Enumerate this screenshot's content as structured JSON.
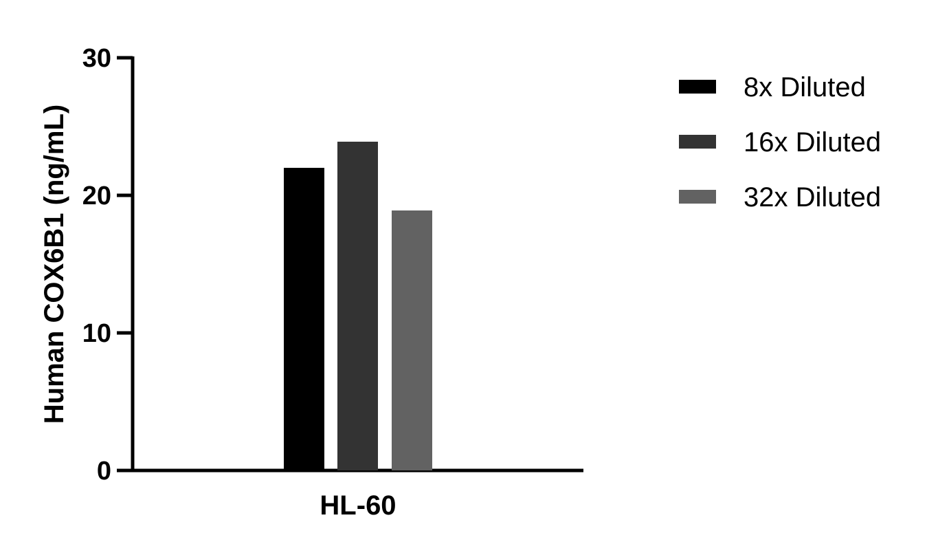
{
  "chart_data": {
    "type": "bar",
    "title": "",
    "xlabel": "",
    "ylabel": "Human COX6B1 (ng/mL)",
    "categories": [
      "HL-60"
    ],
    "series": [
      {
        "name": "8x Diluted",
        "values": [
          22.0
        ],
        "color": "#000000"
      },
      {
        "name": "16x Diluted",
        "values": [
          23.9
        ],
        "color": "#333333"
      },
      {
        "name": "32x Diluted",
        "values": [
          18.9
        ],
        "color": "#626262"
      }
    ],
    "ylim": [
      0,
      30
    ],
    "yticks": [
      "0",
      "10",
      "20",
      "30"
    ],
    "grid": false,
    "legend_position": "right"
  }
}
